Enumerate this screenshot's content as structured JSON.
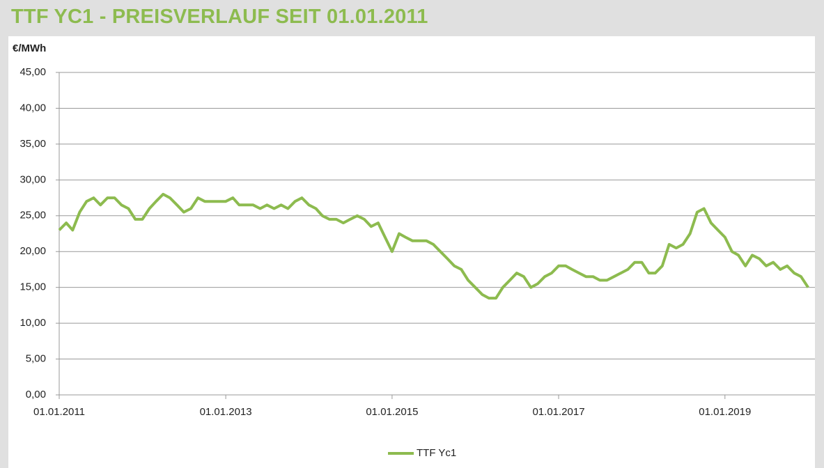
{
  "chart_data": {
    "type": "line",
    "title": "TTF YC1 - PREISVERLAUF SEIT 01.01.2011",
    "y_label": "€/MWh",
    "x": [
      "01.01.2011",
      "01.02.2011",
      "01.03.2011",
      "01.04.2011",
      "01.05.2011",
      "01.06.2011",
      "01.07.2011",
      "01.08.2011",
      "01.09.2011",
      "01.10.2011",
      "01.11.2011",
      "01.12.2011",
      "01.01.2012",
      "01.02.2012",
      "01.03.2012",
      "01.04.2012",
      "01.05.2012",
      "01.06.2012",
      "01.07.2012",
      "01.08.2012",
      "01.09.2012",
      "01.10.2012",
      "01.11.2012",
      "01.12.2012",
      "01.01.2013",
      "01.02.2013",
      "01.03.2013",
      "01.04.2013",
      "01.05.2013",
      "01.06.2013",
      "01.07.2013",
      "01.08.2013",
      "01.09.2013",
      "01.10.2013",
      "01.11.2013",
      "01.12.2013",
      "01.01.2014",
      "01.02.2014",
      "01.03.2014",
      "01.04.2014",
      "01.05.2014",
      "01.06.2014",
      "01.07.2014",
      "01.08.2014",
      "01.09.2014",
      "01.10.2014",
      "01.11.2014",
      "01.12.2014",
      "01.01.2015",
      "01.02.2015",
      "01.03.2015",
      "01.04.2015",
      "01.05.2015",
      "01.06.2015",
      "01.07.2015",
      "01.08.2015",
      "01.09.2015",
      "01.10.2015",
      "01.11.2015",
      "01.12.2015",
      "01.01.2016",
      "01.02.2016",
      "01.03.2016",
      "01.04.2016",
      "01.05.2016",
      "01.06.2016",
      "01.07.2016",
      "01.08.2016",
      "01.09.2016",
      "01.10.2016",
      "01.11.2016",
      "01.12.2016",
      "01.01.2017",
      "01.02.2017",
      "01.03.2017",
      "01.04.2017",
      "01.05.2017",
      "01.06.2017",
      "01.07.2017",
      "01.08.2017",
      "01.09.2017",
      "01.10.2017",
      "01.11.2017",
      "01.12.2017",
      "01.01.2018",
      "01.02.2018",
      "01.03.2018",
      "01.04.2018",
      "01.05.2018",
      "01.06.2018",
      "01.07.2018",
      "01.08.2018",
      "01.09.2018",
      "01.10.2018",
      "01.11.2018",
      "01.12.2018",
      "01.01.2019",
      "01.02.2019",
      "01.03.2019",
      "01.04.2019",
      "01.05.2019",
      "01.06.2019",
      "01.07.2019",
      "01.08.2019",
      "01.09.2019",
      "01.10.2019",
      "01.11.2019",
      "01.12.2019",
      "01.01.2020"
    ],
    "series": [
      {
        "name": "TTF Yc1",
        "color": "#8dbb4f",
        "values": [
          23.0,
          24.0,
          23.0,
          25.5,
          27.0,
          27.5,
          26.5,
          27.5,
          27.5,
          26.5,
          26.0,
          24.5,
          24.5,
          26.0,
          27.0,
          28.0,
          27.5,
          26.5,
          25.5,
          26.0,
          27.5,
          27.0,
          27.0,
          27.0,
          27.0,
          27.5,
          26.5,
          26.5,
          26.5,
          26.0,
          26.5,
          26.0,
          26.5,
          26.0,
          27.0,
          27.5,
          26.5,
          26.0,
          25.0,
          24.5,
          24.5,
          24.0,
          24.5,
          25.0,
          24.5,
          23.5,
          24.0,
          22.0,
          20.0,
          22.5,
          22.0,
          21.5,
          21.5,
          21.5,
          21.0,
          20.0,
          19.0,
          18.0,
          17.5,
          16.0,
          15.0,
          14.0,
          13.5,
          13.5,
          15.0,
          16.0,
          17.0,
          16.5,
          15.0,
          15.5,
          16.5,
          17.0,
          18.0,
          18.0,
          17.5,
          17.0,
          16.5,
          16.5,
          16.0,
          16.0,
          16.5,
          17.0,
          17.5,
          18.5,
          18.5,
          17.0,
          17.0,
          18.0,
          21.0,
          20.5,
          21.0,
          22.5,
          25.5,
          26.0,
          24.0,
          23.0,
          22.0,
          20.0,
          19.5,
          18.0,
          19.5,
          19.0,
          18.0,
          18.5,
          17.5,
          18.0,
          17.0,
          16.5,
          15.0
        ]
      }
    ],
    "xlim": [
      "01.01.2011",
      "31.01.2020"
    ],
    "xticks": [
      "01.01.2011",
      "01.01.2013",
      "01.01.2015",
      "01.01.2017",
      "01.01.2019"
    ],
    "ylim": [
      0,
      45
    ],
    "yticks": [
      {
        "value": 0,
        "label": "0,00"
      },
      {
        "value": 5,
        "label": "5,00"
      },
      {
        "value": 10,
        "label": "10,00"
      },
      {
        "value": 15,
        "label": "15,00"
      },
      {
        "value": 20,
        "label": "20,00"
      },
      {
        "value": 25,
        "label": "25,00"
      },
      {
        "value": 30,
        "label": "30,00"
      },
      {
        "value": 35,
        "label": "35,00"
      },
      {
        "value": 40,
        "label": "40,00"
      },
      {
        "value": 45,
        "label": "45,00"
      }
    ],
    "grid": true,
    "legend": "bottom"
  }
}
